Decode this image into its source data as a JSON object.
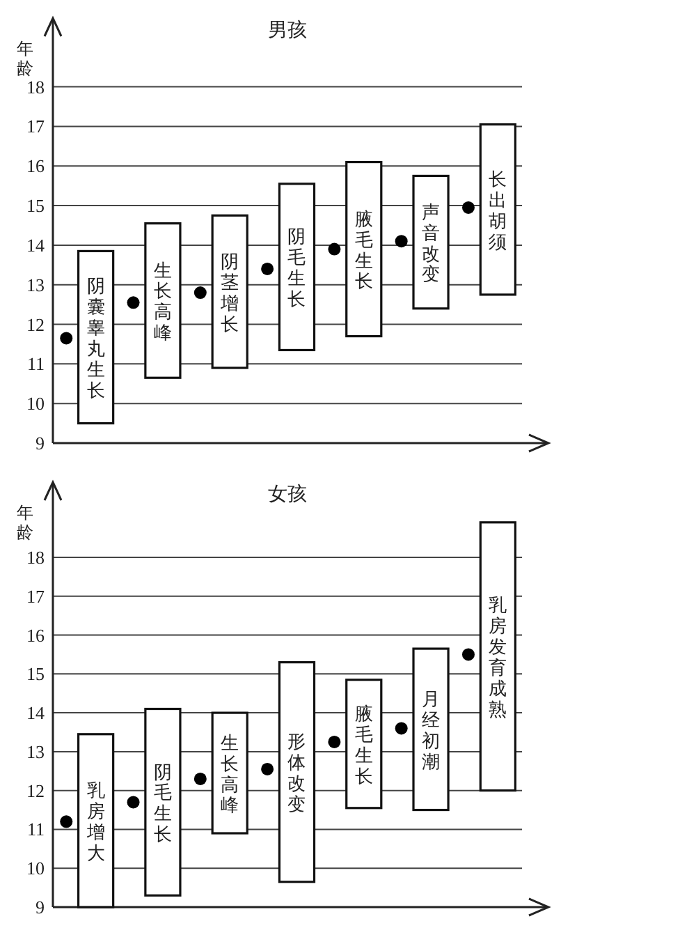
{
  "chart_data": [
    {
      "type": "bar",
      "title": "男孩",
      "ylabel": "年龄",
      "categories": [
        "阴囊睾丸生长",
        "生长高峰",
        "阴茎增长",
        "阴毛生长",
        "腋毛生长",
        "声音改变",
        "长出胡须"
      ],
      "series": [
        {
          "type": "bar",
          "color": "#ffffff",
          "base": [
            9.5,
            10.65,
            10.9,
            11.35,
            11.7,
            12.4,
            12.75
          ],
          "values": [
            4.35,
            3.9,
            3.85,
            4.2,
            4.4,
            3.35,
            4.3
          ]
        },
        {
          "type": "scatter",
          "color": "#000000",
          "marker": "circle",
          "values": [
            11.65,
            12.55,
            12.8,
            13.4,
            13.9,
            14.1,
            14.95
          ]
        }
      ],
      "ylim": [
        9,
        19.7
      ],
      "yticks": [
        9,
        10,
        11,
        12,
        13,
        14,
        15,
        16,
        17,
        18
      ],
      "grid": "y"
    },
    {
      "type": "bar",
      "title": "女孩",
      "ylabel": "年龄",
      "categories": [
        "乳房增大",
        "阴毛生长",
        "生长高峰",
        "形体改变",
        "腋毛生长",
        "月经初潮",
        "乳房发育成熟"
      ],
      "series": [
        {
          "type": "bar",
          "color": "#ffffff",
          "base": [
            9.0,
            9.3,
            10.9,
            9.65,
            11.55,
            11.5,
            12.0
          ],
          "values": [
            4.45,
            4.8,
            3.1,
            5.65,
            3.3,
            4.15,
            6.9
          ]
        },
        {
          "type": "scatter",
          "color": "#000000",
          "marker": "circle",
          "values": [
            11.2,
            11.7,
            12.3,
            12.55,
            13.25,
            13.6,
            15.5
          ]
        }
      ],
      "ylim": [
        9,
        19.9
      ],
      "yticks": [
        9,
        10,
        11,
        12,
        13,
        14,
        15,
        16,
        17,
        18
      ],
      "grid": "y"
    }
  ]
}
